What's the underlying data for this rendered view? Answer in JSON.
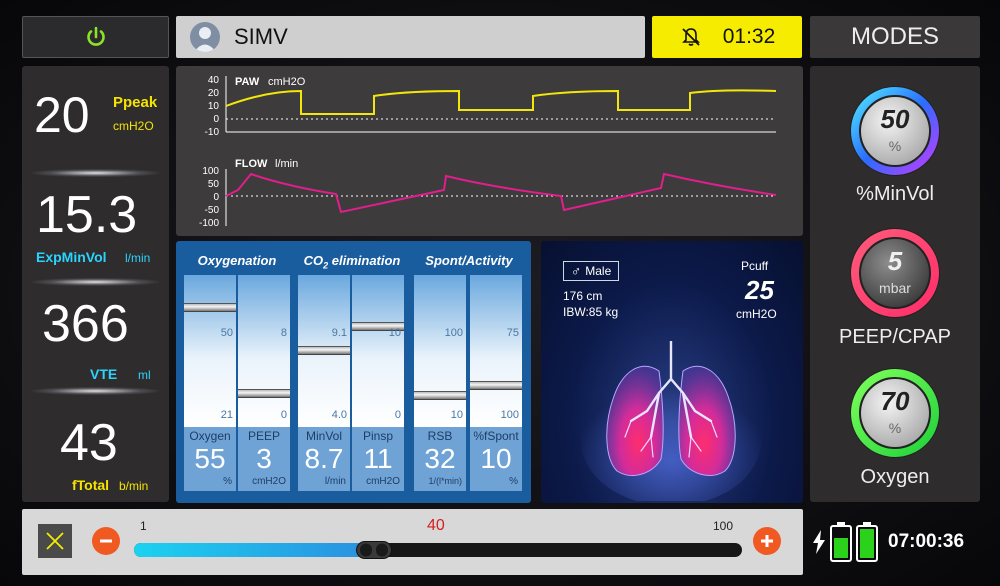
{
  "header": {
    "mode": "SIMV",
    "alarm_timer": "01:32",
    "modes_title": "MODES"
  },
  "measurements": [
    {
      "value": "20",
      "label": "Ppeak",
      "unit": "cmH2O"
    },
    {
      "value": "15.3",
      "label": "ExpMinVol",
      "unit": "l/min"
    },
    {
      "value": "366",
      "label": "VTE",
      "unit": "ml"
    },
    {
      "value": "43",
      "label": "fTotal",
      "unit": "b/min"
    }
  ],
  "waveforms": {
    "paw": {
      "label": "PAW",
      "unit": "cmH2O",
      "ticks": [
        "40",
        "20",
        "10",
        "0",
        "-10"
      ],
      "color": "#f2e60a"
    },
    "flow": {
      "label": "FLOW",
      "unit": "l/min",
      "ticks": [
        "100",
        "50",
        "0",
        "-50",
        "-100"
      ],
      "color": "#e01e8c"
    }
  },
  "settings_groups": [
    {
      "title": "Oxygenation"
    },
    {
      "title_pre": "CO",
      "title_sub": "2",
      "title_post": " elimination"
    },
    {
      "title": "Spont/Activity"
    }
  ],
  "settings": [
    {
      "name": "Oxygen",
      "value": "55",
      "unit": "%",
      "max": "50",
      "min": "21",
      "level": 0.86
    },
    {
      "name": "PEEP",
      "value": "3",
      "unit": "cmH2O",
      "max": "8",
      "min": "0",
      "level": 0.24
    },
    {
      "name": "MinVol",
      "value": "8.7",
      "unit": "l/min",
      "max": "9.1",
      "min": "4.0",
      "level": 0.55
    },
    {
      "name": "Pinsp",
      "value": "11",
      "unit": "cmH2O",
      "max": "10",
      "min": "0",
      "level": 0.72
    },
    {
      "name": "RSB",
      "value": "32",
      "unit": "1/(l*min)",
      "max": "100",
      "min": "10",
      "level": 0.23
    },
    {
      "name": "%fSpont",
      "value": "10",
      "unit": "%",
      "max": "75",
      "min": "100",
      "level": 0.3
    }
  ],
  "patient": {
    "gender": "Male",
    "height": "176 cm",
    "ibw": "IBW:85 kg",
    "pcuff_label": "Pcuff",
    "pcuff_value": "25",
    "pcuff_unit": "cmH2O"
  },
  "modes": [
    {
      "value": "50",
      "unit": "%",
      "label": "%MinVol",
      "ring_color": "#2a8cff"
    },
    {
      "value": "5",
      "unit": "mbar",
      "label": "PEEP/CPAP",
      "ring_color": "#ff2e6a"
    },
    {
      "value": "70",
      "unit": "%",
      "label": "Oxygen",
      "ring_color": "#38e53a"
    }
  ],
  "slider": {
    "min_label": "1",
    "max_label": "100",
    "value_label": "40",
    "value": 40,
    "min": 1,
    "max": 100
  },
  "status": {
    "clock": "07:00:36"
  }
}
